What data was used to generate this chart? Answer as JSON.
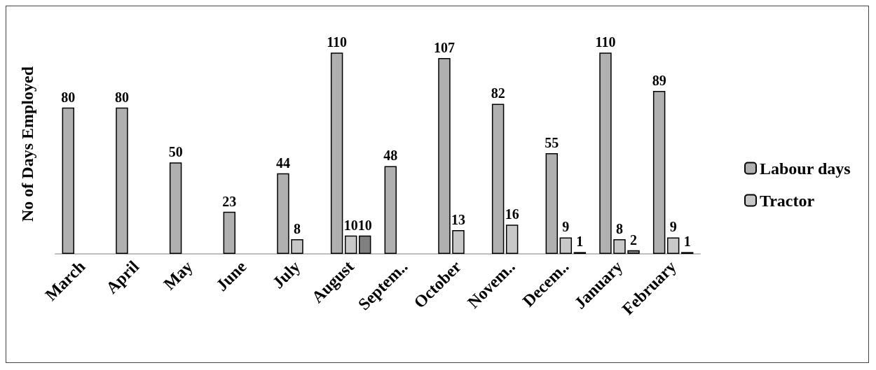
{
  "chart_data": {
    "type": "bar",
    "ylabel": "No of Days Employed",
    "categories": [
      "March",
      "April",
      "May",
      "June",
      "July",
      "August",
      "Septem..",
      "October",
      "Novem..",
      "Decem..",
      "January",
      "February"
    ],
    "series": [
      {
        "name": "Labour days",
        "color": "#b0b0b0",
        "values": [
          80,
          80,
          50,
          23,
          44,
          110,
          48,
          107,
          82,
          55,
          110,
          89
        ]
      },
      {
        "name": "Tractor",
        "color": "#c8c8c8",
        "values": [
          null,
          null,
          null,
          null,
          8,
          10,
          null,
          13,
          16,
          9,
          8,
          9
        ]
      },
      {
        "color": "#808080",
        "values": [
          null,
          null,
          null,
          null,
          null,
          10,
          null,
          null,
          null,
          1,
          2,
          1
        ]
      }
    ],
    "data_labels": true,
    "legend": "right",
    "grid": false
  }
}
